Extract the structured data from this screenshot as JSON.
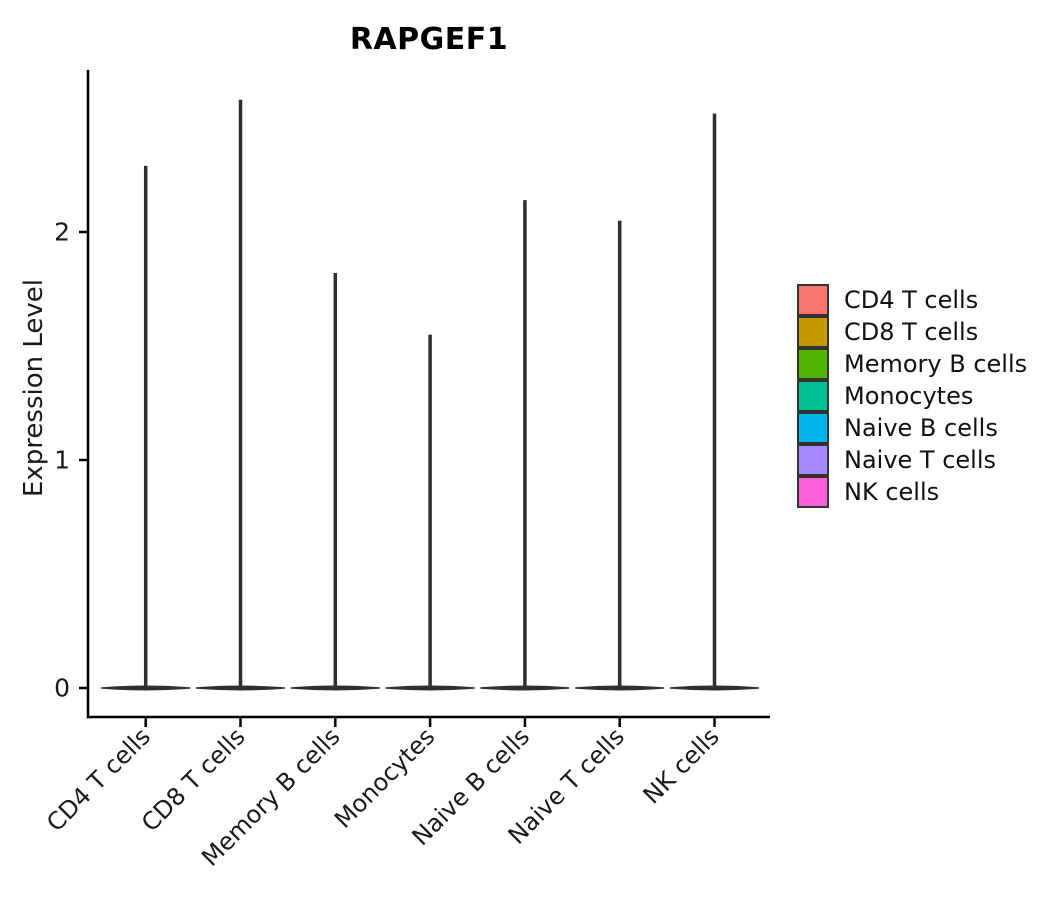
{
  "title": "RAPGEF1",
  "ylabel": "Expression Level",
  "chart_data": {
    "type": "violin",
    "title": "RAPGEF1",
    "xlabel": "",
    "ylabel": "Expression Level",
    "categories": [
      "CD4 T cells",
      "CD8 T cells",
      "Memory B cells",
      "Monocytes",
      "Naive B cells",
      "Naive T cells",
      "NK cells"
    ],
    "violin_max_values": [
      2.29,
      2.58,
      1.82,
      1.55,
      2.14,
      2.05,
      2.52
    ],
    "violin_mode_value": 0,
    "yticks": [
      0,
      1,
      2
    ],
    "ylim": [
      -0.13,
      2.85
    ],
    "grid": false,
    "legend_position": "right",
    "shape_note": "each violin is a flat horizontal lens at 0 with a single thin spike rising to its max value"
  },
  "legend": {
    "items": [
      {
        "label": "CD4 T cells",
        "color": "#F8766D"
      },
      {
        "label": "CD8 T cells",
        "color": "#C49A00"
      },
      {
        "label": "Memory B cells",
        "color": "#53B400"
      },
      {
        "label": "Monocytes",
        "color": "#00C094"
      },
      {
        "label": "Naive B cells",
        "color": "#00B6EB"
      },
      {
        "label": "Naive T cells",
        "color": "#A58AFF"
      },
      {
        "label": "NK cells",
        "color": "#FB61D7"
      }
    ]
  },
  "colors": {
    "violin": "#2F2F2F",
    "axis": "#000000",
    "tick_text": "#1a1a1a",
    "legend_swatch_border": "#333333"
  }
}
